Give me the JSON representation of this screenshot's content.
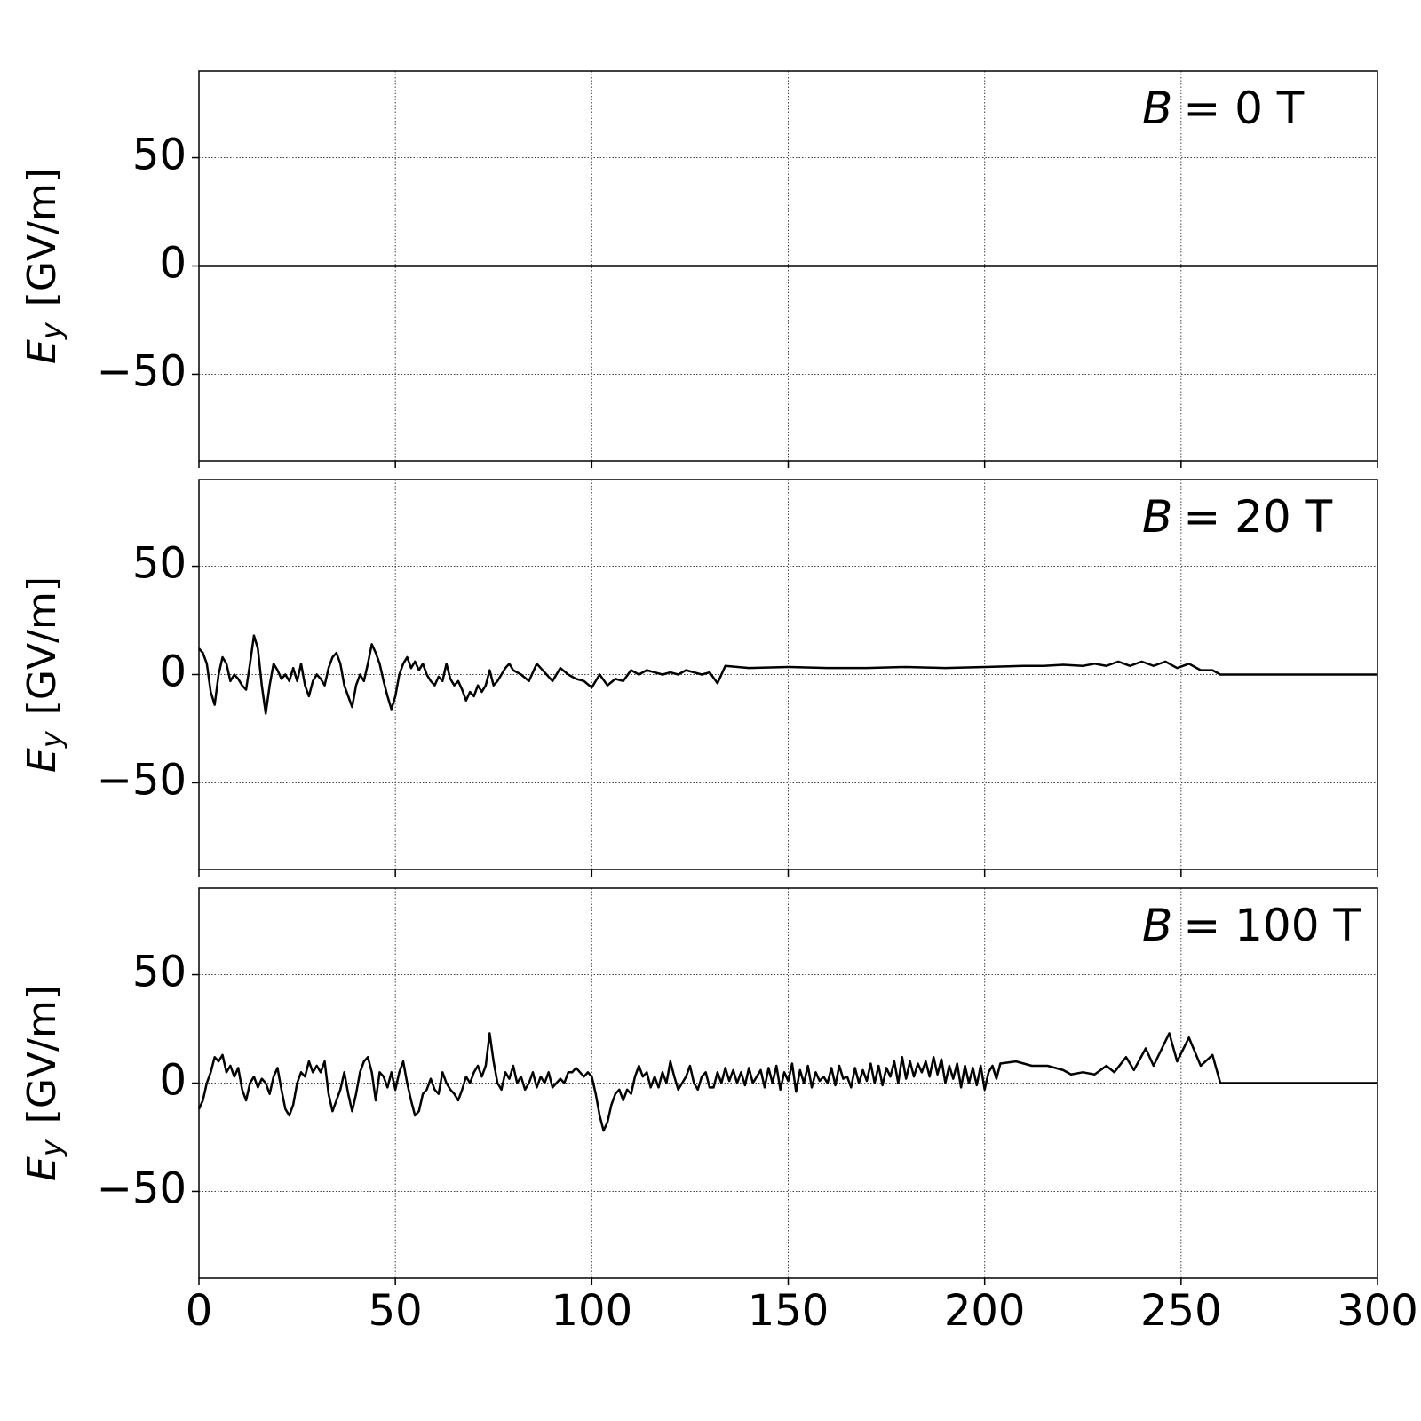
{
  "chart_data": [
    {
      "type": "line",
      "annotation": {
        "symbol": "B",
        "text": "= 0 T"
      },
      "ylabel": {
        "symbol": "E",
        "subscript": "y",
        "unit": "[GV/m]"
      },
      "xlim": [
        0,
        300
      ],
      "xticks": [
        0,
        50,
        100,
        150,
        200,
        250,
        300
      ],
      "ylim": [
        -90,
        90
      ],
      "yticks": [
        {
          "value": -50,
          "label": "−50"
        },
        0,
        50
      ],
      "grid": true,
      "series": [
        {
          "color": "#000000",
          "x": [
            0,
            300
          ],
          "values": [
            0,
            0
          ]
        }
      ]
    },
    {
      "type": "line",
      "annotation": {
        "symbol": "B",
        "text": "= 20 T"
      },
      "ylabel": {
        "symbol": "E",
        "subscript": "y",
        "unit": "[GV/m]"
      },
      "xlim": [
        0,
        300
      ],
      "xticks": [
        0,
        50,
        100,
        150,
        200,
        250,
        300
      ],
      "ylim": [
        -90,
        90
      ],
      "yticks": [
        {
          "value": -50,
          "label": "−50"
        },
        0,
        50
      ],
      "grid": true,
      "series": [
        {
          "color": "#000000",
          "x": [
            0,
            1,
            2,
            3,
            4,
            5,
            6,
            7,
            8,
            9,
            10,
            11,
            12,
            13,
            14,
            15,
            16,
            17,
            18,
            19,
            20,
            21,
            22,
            23,
            24,
            25,
            26,
            27,
            28,
            29,
            30,
            31,
            32,
            33,
            34,
            35,
            36,
            37,
            38,
            39,
            40,
            41,
            42,
            43,
            44,
            45,
            46,
            47,
            48,
            49,
            50,
            51,
            52,
            53,
            54,
            55,
            56,
            57,
            58,
            59,
            60,
            61,
            62,
            63,
            64,
            65,
            66,
            67,
            68,
            69,
            70,
            71,
            72,
            73,
            74,
            75,
            76,
            77,
            78,
            79,
            80,
            82,
            84,
            86,
            88,
            90,
            92,
            94,
            96,
            98,
            100,
            102,
            104,
            106,
            108,
            110,
            112,
            114,
            116,
            118,
            120,
            122,
            124,
            126,
            128,
            130,
            132,
            134,
            140,
            150,
            160,
            170,
            180,
            190,
            200,
            210,
            215,
            220,
            225,
            228,
            231,
            234,
            237,
            240,
            243,
            246,
            249,
            252,
            255,
            258,
            260,
            300
          ],
          "values": [
            12,
            10,
            5,
            -8,
            -14,
            0,
            8,
            5,
            -3,
            0,
            -2,
            -5,
            -7,
            5,
            18,
            12,
            -5,
            -18,
            -5,
            5,
            2,
            -2,
            0,
            -3,
            3,
            -3,
            5,
            -5,
            -10,
            -3,
            0,
            -2,
            -5,
            3,
            8,
            10,
            5,
            -5,
            -10,
            -15,
            -5,
            0,
            -3,
            5,
            14,
            10,
            5,
            -3,
            -10,
            -16,
            -10,
            0,
            5,
            8,
            3,
            6,
            2,
            5,
            0,
            -3,
            -5,
            -1,
            -3,
            5,
            -2,
            -5,
            -3,
            -7,
            -12,
            -8,
            -10,
            -5,
            -8,
            -5,
            2,
            -5,
            -3,
            0,
            3,
            5,
            2,
            0,
            -3,
            5,
            1,
            -3,
            3,
            0,
            -2,
            -3,
            -6,
            0,
            -5,
            -2,
            -3,
            2,
            0,
            2,
            1,
            0,
            1,
            0,
            2,
            1,
            0,
            1,
            -4,
            4,
            3,
            3.5,
            3,
            3,
            3.5,
            3,
            3.5,
            4,
            4,
            4.5,
            4,
            5,
            4,
            6,
            4,
            6,
            4,
            6,
            3,
            5,
            2,
            2,
            0,
            0
          ]
        }
      ]
    },
    {
      "type": "line",
      "annotation": {
        "symbol": "B",
        "text": "= 100 T"
      },
      "ylabel": {
        "symbol": "E",
        "subscript": "y",
        "unit": "[GV/m]"
      },
      "xlim": [
        0,
        300
      ],
      "xticks": [
        0,
        50,
        100,
        150,
        200,
        250,
        300
      ],
      "ylim": [
        -90,
        90
      ],
      "yticks": [
        {
          "value": -50,
          "label": "−50"
        },
        0,
        50
      ],
      "grid": true,
      "series": [
        {
          "color": "#000000",
          "x": [
            0,
            1,
            2,
            3,
            4,
            5,
            6,
            7,
            8,
            9,
            10,
            11,
            12,
            13,
            14,
            15,
            16,
            17,
            18,
            19,
            20,
            21,
            22,
            23,
            24,
            25,
            26,
            27,
            28,
            29,
            30,
            31,
            32,
            33,
            34,
            35,
            36,
            37,
            38,
            39,
            40,
            41,
            42,
            43,
            44,
            45,
            46,
            47,
            48,
            49,
            50,
            51,
            52,
            53,
            54,
            55,
            56,
            57,
            58,
            59,
            60,
            61,
            62,
            63,
            64,
            65,
            66,
            67,
            68,
            69,
            70,
            71,
            72,
            73,
            74,
            75,
            76,
            77,
            78,
            79,
            80,
            81,
            82,
            83,
            84,
            85,
            86,
            87,
            88,
            89,
            90,
            91,
            92,
            93,
            94,
            95,
            96,
            97,
            98,
            99,
            100,
            101,
            102,
            103,
            104,
            105,
            106,
            107,
            108,
            109,
            110,
            111,
            112,
            113,
            114,
            115,
            116,
            117,
            118,
            119,
            120,
            121,
            122,
            123,
            124,
            125,
            126,
            127,
            128,
            129,
            130,
            131,
            132,
            133,
            134,
            135,
            136,
            137,
            138,
            139,
            140,
            141,
            142,
            143,
            144,
            145,
            146,
            147,
            148,
            149,
            150,
            151,
            152,
            153,
            154,
            155,
            156,
            157,
            158,
            159,
            160,
            161,
            162,
            163,
            164,
            165,
            166,
            167,
            168,
            169,
            170,
            171,
            172,
            173,
            174,
            175,
            176,
            177,
            178,
            179,
            180,
            181,
            182,
            183,
            184,
            185,
            186,
            187,
            188,
            189,
            190,
            191,
            192,
            193,
            194,
            195,
            196,
            197,
            198,
            199,
            200,
            201,
            202,
            203,
            204,
            208,
            212,
            216,
            220,
            222,
            225,
            228,
            231,
            233,
            236,
            238,
            241,
            243,
            247,
            249,
            252,
            255,
            258,
            260,
            300
          ],
          "values": [
            -12,
            -8,
            0,
            5,
            12,
            10,
            13,
            5,
            8,
            3,
            7,
            -3,
            -8,
            0,
            3,
            -2,
            2,
            0,
            -5,
            3,
            7,
            -3,
            -12,
            -15,
            -10,
            0,
            5,
            3,
            10,
            5,
            8,
            5,
            10,
            -5,
            -13,
            -8,
            -3,
            5,
            -5,
            -13,
            -5,
            5,
            10,
            12,
            5,
            -8,
            5,
            3,
            -2,
            5,
            -3,
            5,
            10,
            0,
            -8,
            -15,
            -13,
            -5,
            -3,
            2,
            -3,
            -5,
            5,
            0,
            -3,
            -5,
            -8,
            -3,
            3,
            0,
            5,
            8,
            3,
            8,
            23,
            10,
            0,
            -3,
            5,
            2,
            8,
            0,
            3,
            -3,
            0,
            5,
            -2,
            3,
            0,
            5,
            -2,
            0,
            2,
            0,
            5,
            5,
            7,
            5,
            3,
            5,
            3,
            -5,
            -15,
            -22,
            -18,
            -10,
            -5,
            -3,
            -8,
            -3,
            -5,
            3,
            8,
            3,
            5,
            -2,
            3,
            -2,
            5,
            0,
            10,
            3,
            -3,
            0,
            3,
            8,
            0,
            -3,
            3,
            5,
            -2,
            -2,
            5,
            0,
            7,
            1,
            6,
            0,
            5,
            -1,
            7,
            0,
            3,
            6,
            -2,
            7,
            0,
            8,
            -3,
            5,
            1,
            9,
            -4,
            6,
            0,
            8,
            -2,
            5,
            1,
            3,
            0,
            7,
            -1,
            8,
            2,
            3,
            -2,
            7,
            0,
            6,
            1,
            9,
            0,
            8,
            -1,
            7,
            3,
            10,
            0,
            12,
            2,
            10,
            3,
            9,
            5,
            10,
            3,
            12,
            4,
            11,
            0,
            8,
            2,
            9,
            -2,
            8,
            0,
            7,
            -1,
            8,
            -3,
            5,
            8,
            2,
            9,
            10,
            8,
            8,
            6,
            4,
            5,
            4,
            8,
            5,
            12,
            6,
            16,
            8,
            23,
            10,
            21,
            8,
            13,
            0,
            0
          ]
        }
      ]
    }
  ]
}
